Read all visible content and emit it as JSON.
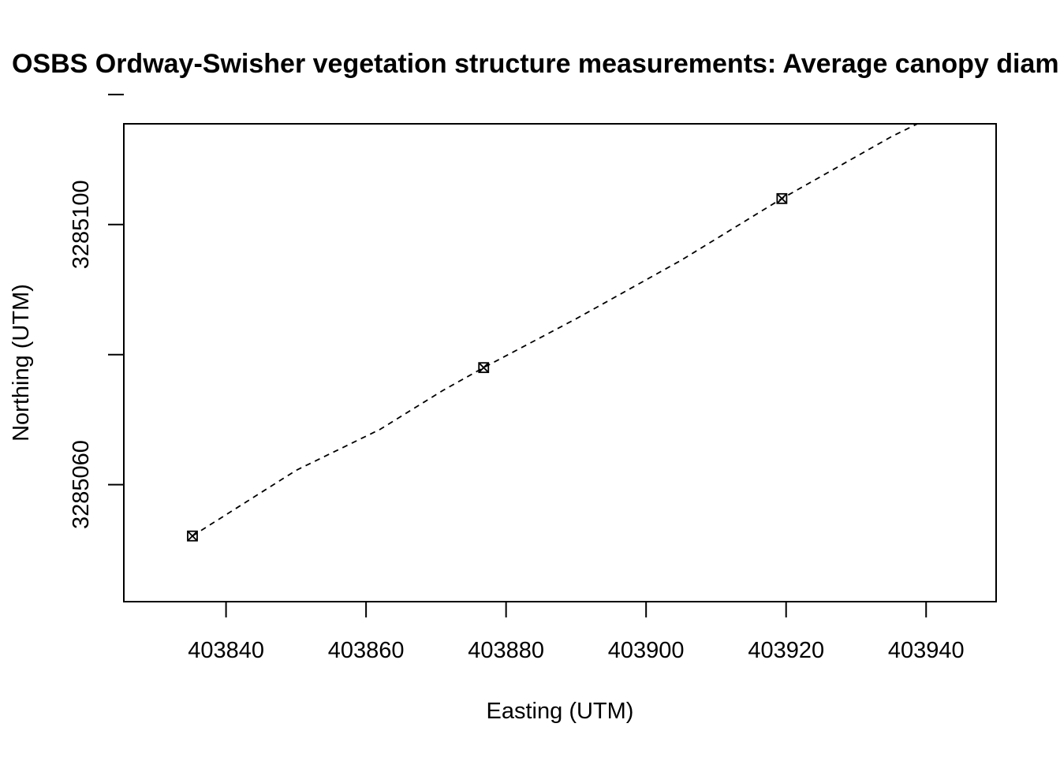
{
  "chart_data": {
    "type": "scatter",
    "title": "OSBS Ordway-Swisher vegetation structure measurements: Average canopy diameter",
    "xlabel": "Easting (UTM)",
    "ylabel": "Northing (UTM)",
    "xlim": [
      403825.4,
      403950
    ],
    "ylim": [
      3285042,
      3285115.5
    ],
    "x_ticks": [
      403840,
      403860,
      403880,
      403900,
      403920,
      403940
    ],
    "x_tick_labels": [
      "403840",
      "403860",
      "403880",
      "403900",
      "403920",
      "403940"
    ],
    "y_ticks": [
      3285060,
      3285080,
      3285100,
      3285120
    ],
    "y_tick_labels": [
      "3285060",
      "",
      "3285100",
      ""
    ],
    "grid": false,
    "legend": "none",
    "series": [
      {
        "style": "points",
        "marker": "square-with-x",
        "color": "#000000",
        "x": [
          403835.2,
          403876.8,
          403919.4
        ],
        "y": [
          3285052.1,
          3285078.0,
          3285104.0
        ]
      },
      {
        "style": "dashed-line",
        "color": "#000000",
        "x": [
          403835.2,
          403850,
          403862,
          403871,
          403876.8,
          403890,
          403905,
          403919.4,
          403935,
          403950
        ],
        "y": [
          3285052.1,
          3285062.2,
          3285068.5,
          3285074.5,
          3285078.0,
          3285085.5,
          3285094.5,
          3285104.0,
          3285113.5,
          3285121.5
        ]
      }
    ]
  }
}
